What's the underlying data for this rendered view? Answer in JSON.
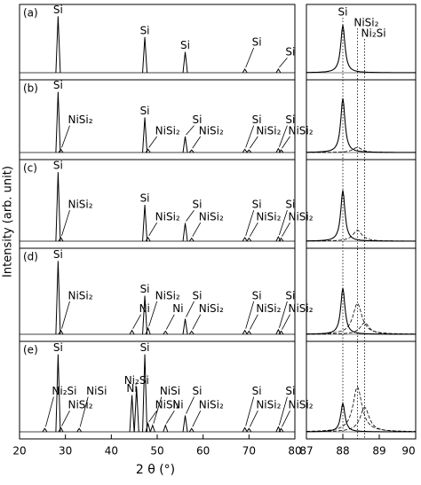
{
  "chart_data": [
    {
      "type": "xrd",
      "xlabel": "2 θ (°)",
      "ylabel": "Intensity (arb. unit)",
      "xlim": [
        20,
        80
      ],
      "xticks": [
        20,
        30,
        40,
        50,
        60,
        70,
        80
      ],
      "ylim": [
        0,
        1
      ],
      "color": "#000000",
      "panels": [
        {
          "label": "(a)",
          "x": [
            28.4,
            47.3,
            56.1,
            69.1,
            76.4
          ],
          "values": [
            0.95,
            0.6,
            0.35,
            0.06,
            0.06
          ],
          "peak_labels": [
            "Si",
            "Si",
            "Si",
            "Si",
            "Si"
          ]
        },
        {
          "label": "(b)",
          "x": [
            28.4,
            29.0,
            47.3,
            48.0,
            56.1,
            57.5,
            69.1,
            70.0,
            76.4,
            77.0
          ],
          "values": [
            0.95,
            0.05,
            0.55,
            0.05,
            0.25,
            0.04,
            0.05,
            0.04,
            0.06,
            0.04
          ],
          "peak_labels": [
            "Si",
            "NiSi₂",
            "Si",
            "NiSi₂",
            "Si",
            "NiSi₂",
            "Si",
            "NiSi₂",
            "Si",
            "NiSi₂"
          ]
        },
        {
          "label": "(c)",
          "x": [
            28.4,
            29.0,
            47.3,
            48.0,
            56.1,
            57.5,
            69.1,
            70.0,
            76.4,
            77.0
          ],
          "values": [
            0.95,
            0.05,
            0.5,
            0.05,
            0.25,
            0.04,
            0.05,
            0.04,
            0.06,
            0.04
          ],
          "peak_labels": [
            "Si",
            "NiSi₂",
            "Si",
            "NiSi₂",
            "Si",
            "NiSi₂",
            "Si",
            "NiSi₂",
            "Si",
            "NiSi₂"
          ]
        },
        {
          "label": "(d)",
          "x": [
            28.4,
            29.0,
            44.5,
            47.3,
            48.0,
            51.8,
            56.1,
            57.5,
            69.1,
            70.0,
            76.4,
            77.0
          ],
          "values": [
            0.95,
            0.05,
            0.05,
            0.5,
            0.08,
            0.04,
            0.2,
            0.04,
            0.05,
            0.04,
            0.06,
            0.04
          ],
          "peak_labels": [
            "Si",
            "NiSi₂",
            "Ni",
            "Si",
            "NiSi₂",
            "Ni",
            "Si",
            "NiSi₂",
            "Si",
            "NiSi₂",
            "Si",
            "NiSi₂"
          ]
        },
        {
          "label": "(e)",
          "x": [
            25.5,
            28.4,
            29.0,
            33.0,
            44.5,
            45.5,
            47.3,
            48.0,
            49.0,
            51.8,
            56.1,
            57.5,
            69.1,
            70.0,
            76.4,
            77.0
          ],
          "values": [
            0.04,
            0.95,
            0.05,
            0.04,
            0.45,
            0.55,
            0.95,
            0.1,
            0.08,
            0.08,
            0.2,
            0.04,
            0.05,
            0.04,
            0.06,
            0.04
          ],
          "peak_labels": [
            "Ni₂Si",
            "Si",
            "NiSi₂",
            "NiSi",
            "Ni",
            "Ni₂Si",
            "Si",
            "NiSi₂",
            "NiSi",
            "Ni",
            "Si",
            "NiSi₂",
            "Si",
            "NiSi₂",
            "Si",
            "NiSi₂"
          ]
        }
      ]
    },
    {
      "type": "zoom",
      "xlim": [
        87,
        90
      ],
      "xticks": [
        87,
        88,
        89,
        90
      ],
      "ylim": [
        0,
        1
      ],
      "ref_lines": [
        {
          "x": 88.0,
          "label": "Si"
        },
        {
          "x": 88.4,
          "label": "NiSi₂"
        },
        {
          "x": 88.6,
          "label": "Ni₂Si"
        }
      ],
      "panels": [
        {
          "x": [
            88.0
          ],
          "values": [
            0.8
          ]
        },
        {
          "x": [
            88.0,
            88.4
          ],
          "values": [
            0.85,
            0.08
          ]
        },
        {
          "x": [
            88.0,
            88.4
          ],
          "values": [
            0.7,
            0.15
          ]
        },
        {
          "x": [
            88.0,
            88.4,
            88.6
          ],
          "values": [
            0.6,
            0.4,
            0.15
          ]
        },
        {
          "x": [
            88.0,
            88.4,
            88.6
          ],
          "values": [
            0.35,
            0.55,
            0.3
          ]
        }
      ]
    }
  ]
}
